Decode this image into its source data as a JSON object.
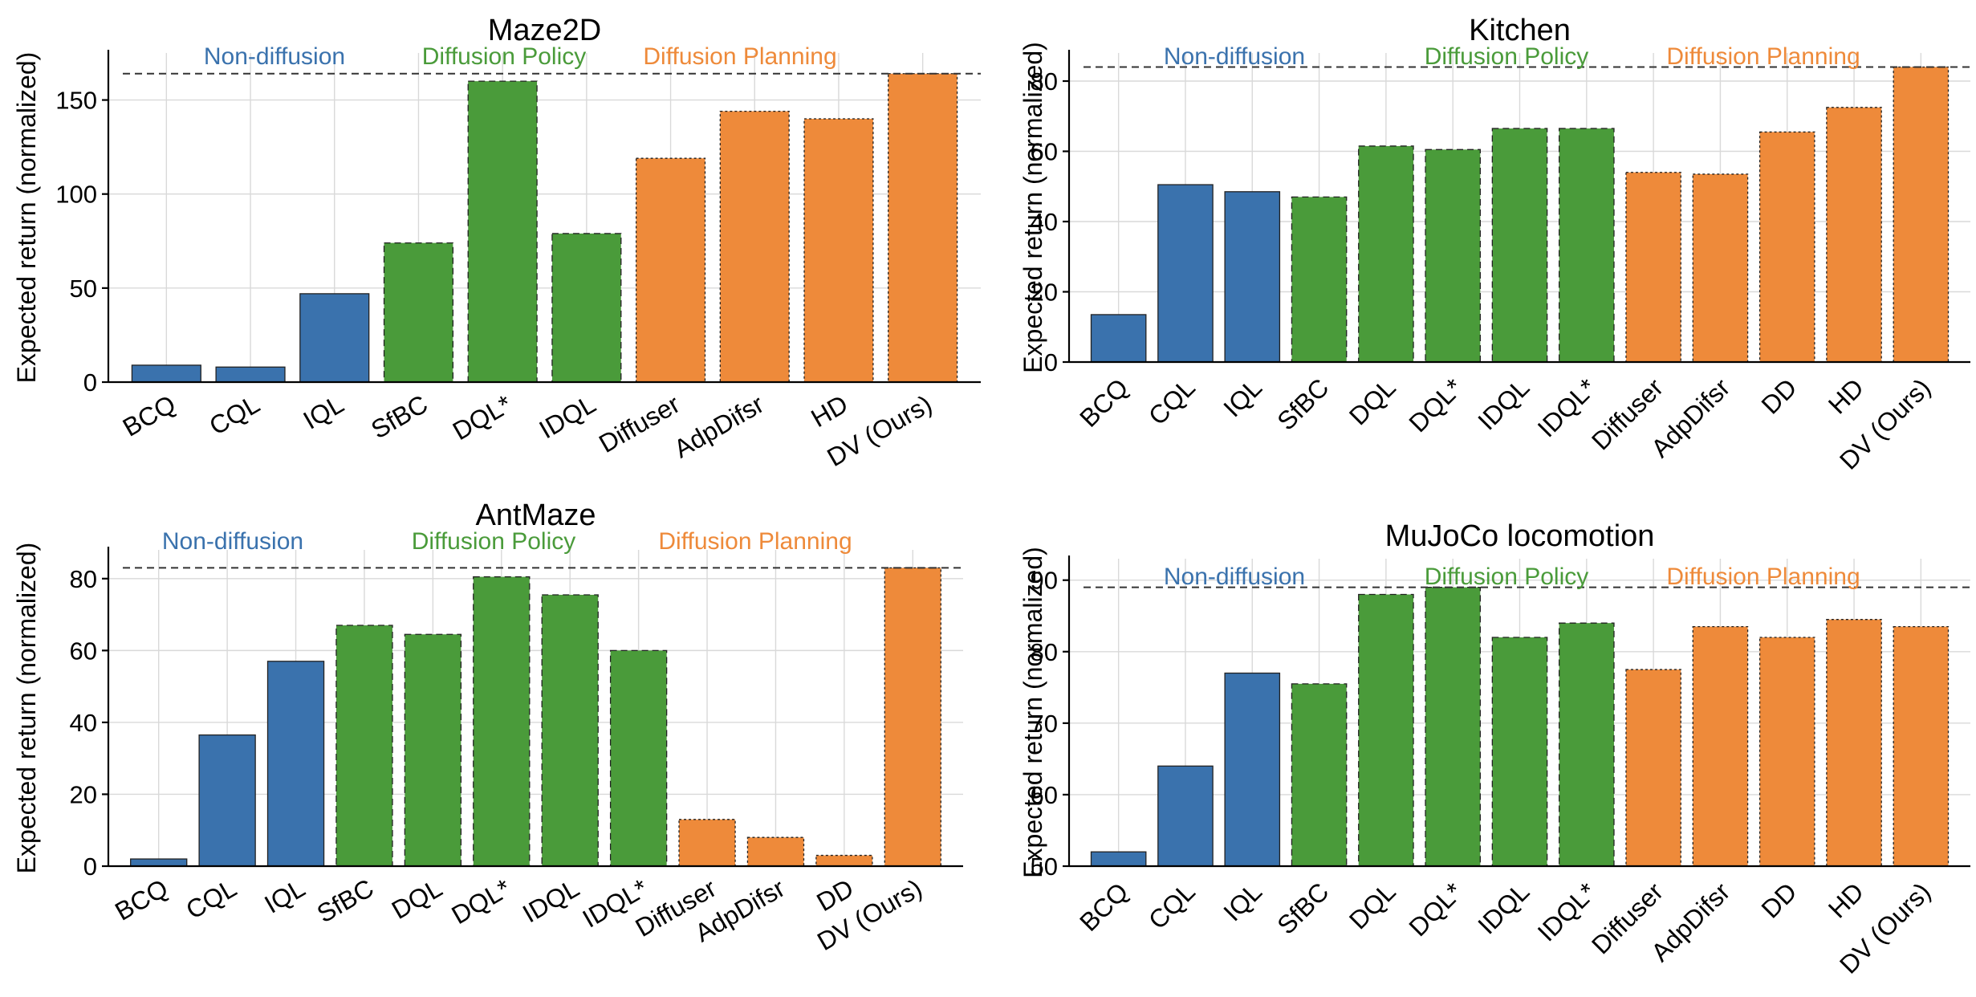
{
  "colors": {
    "non_diffusion": "#3a72ad",
    "diffusion_policy": "#4a9b3a",
    "diffusion_planning": "#ee8a3a"
  },
  "chart_data": [
    {
      "type": "bar",
      "title": "Maze2D",
      "xlabel": "",
      "ylabel": "Expected return (normalized)",
      "ylim": [
        0,
        175
      ],
      "yticks": [
        "0",
        "50",
        "100",
        "150"
      ],
      "grid": true,
      "reference_line": 164,
      "group_labels": [
        "Non-diffusion",
        "Diffusion Policy",
        "Diffusion Planning"
      ],
      "categories": [
        "BCQ",
        "CQL",
        "IQL",
        "SfBC",
        "DQL*",
        "IDQL",
        "Diffuser",
        "AdpDifsr",
        "HD",
        "DV (Ours)"
      ],
      "values": [
        9,
        8,
        47,
        74,
        160,
        79,
        119,
        144,
        140,
        164
      ],
      "groups": [
        "non_diffusion",
        "non_diffusion",
        "non_diffusion",
        "diffusion_policy",
        "diffusion_policy",
        "diffusion_policy",
        "diffusion_planning",
        "diffusion_planning",
        "diffusion_planning",
        "diffusion_planning"
      ]
    },
    {
      "type": "bar",
      "title": "Kitchen",
      "xlabel": "",
      "ylabel": "Expected return (normalized)",
      "ylim": [
        0,
        88
      ],
      "yticks": [
        "0",
        "20",
        "40",
        "60",
        "80"
      ],
      "grid": true,
      "reference_line": 84,
      "group_labels": [
        "Non-diffusion",
        "Diffusion Policy",
        "Diffusion Planning"
      ],
      "categories": [
        "BCQ",
        "CQL",
        "IQL",
        "SfBC",
        "DQL",
        "DQL*",
        "IDQL",
        "IDQL*",
        "Diffuser",
        "AdpDifsr",
        "DD",
        "HD",
        "DV (Ours)"
      ],
      "values": [
        13.5,
        50.5,
        48.5,
        47,
        61.5,
        60.5,
        66.5,
        66.5,
        54,
        53.5,
        65.5,
        72.5,
        84
      ],
      "groups": [
        "non_diffusion",
        "non_diffusion",
        "non_diffusion",
        "diffusion_policy",
        "diffusion_policy",
        "diffusion_policy",
        "diffusion_policy",
        "diffusion_policy",
        "diffusion_planning",
        "diffusion_planning",
        "diffusion_planning",
        "diffusion_planning",
        "diffusion_planning"
      ]
    },
    {
      "type": "bar",
      "title": "AntMaze",
      "xlabel": "",
      "ylabel": "Expected return (normalized)",
      "ylim": [
        0,
        88
      ],
      "yticks": [
        "0",
        "20",
        "40",
        "60",
        "80"
      ],
      "grid": true,
      "reference_line": 83,
      "group_labels": [
        "Non-diffusion",
        "Diffusion Policy",
        "Diffusion Planning"
      ],
      "categories": [
        "BCQ",
        "CQL",
        "IQL",
        "SfBC",
        "DQL",
        "DQL*",
        "IDQL",
        "IDQL*",
        "Diffuser",
        "AdpDifsr",
        "DD",
        "DV (Ours)"
      ],
      "values": [
        2,
        36.5,
        57,
        67,
        64.5,
        80.5,
        75.5,
        60,
        13,
        8,
        3,
        83
      ],
      "groups": [
        "non_diffusion",
        "non_diffusion",
        "non_diffusion",
        "diffusion_policy",
        "diffusion_policy",
        "diffusion_policy",
        "diffusion_policy",
        "diffusion_policy",
        "diffusion_planning",
        "diffusion_planning",
        "diffusion_planning",
        "diffusion_planning"
      ]
    },
    {
      "type": "bar",
      "title": "MuJoCo locomotion",
      "xlabel": "",
      "ylabel": "Expected return (normalized)",
      "ylim": [
        50,
        93
      ],
      "yticks": [
        "50",
        "60",
        "70",
        "80",
        "90"
      ],
      "grid": true,
      "reference_line": 89,
      "group_labels": [
        "Non-diffusion",
        "Diffusion Policy",
        "Diffusion Planning"
      ],
      "categories": [
        "BCQ",
        "CQL",
        "IQL",
        "SfBC",
        "DQL",
        "DQL*",
        "IDQL",
        "IDQL*",
        "Diffuser",
        "AdpDifsr",
        "DD",
        "HD",
        "DV (Ours)"
      ],
      "values": [
        52,
        64,
        77,
        75.5,
        88,
        89,
        82,
        84,
        77.5,
        83.5,
        82,
        84.5,
        83.5
      ],
      "groups": [
        "non_diffusion",
        "non_diffusion",
        "non_diffusion",
        "diffusion_policy",
        "diffusion_policy",
        "diffusion_policy",
        "diffusion_policy",
        "diffusion_policy",
        "diffusion_planning",
        "diffusion_planning",
        "diffusion_planning",
        "diffusion_planning",
        "diffusion_planning"
      ]
    }
  ]
}
